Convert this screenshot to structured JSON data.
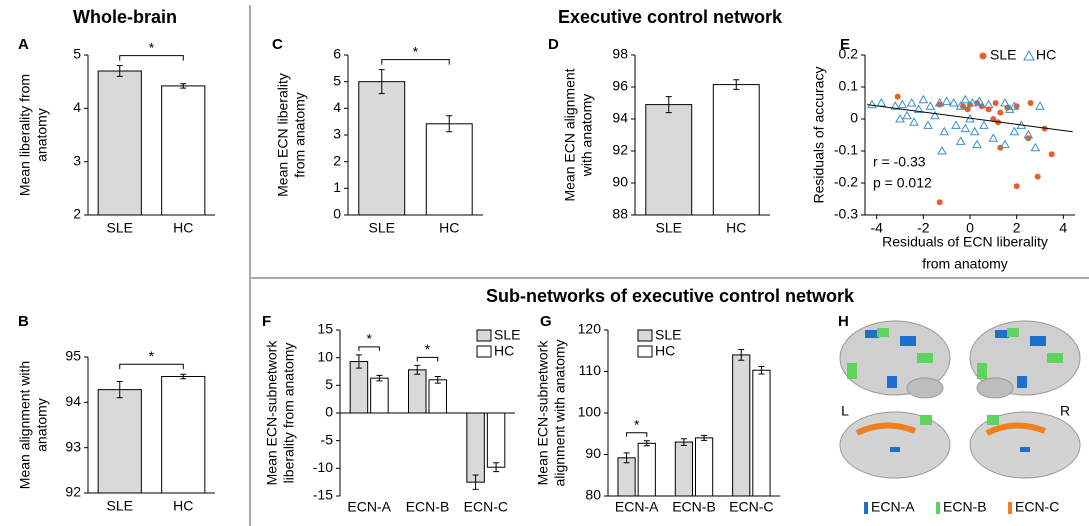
{
  "headers": [
    "Whole-brain",
    "Executive control network",
    "Sub-networks of executive control network"
  ],
  "chart_data": [
    {
      "panel": "A",
      "type": "bar",
      "y_label": [
        "Mean liberality from",
        "anatomy"
      ],
      "categories": [
        "SLE",
        "HC"
      ],
      "values": [
        4.7,
        4.42
      ],
      "errors": [
        0.1,
        0.04
      ],
      "colors": [
        "#d9d9d9",
        "#ffffff"
      ],
      "ylim": [
        2,
        5
      ],
      "yticks": [
        2,
        3,
        4,
        5
      ],
      "significance": "*"
    },
    {
      "panel": "B",
      "type": "bar",
      "y_label": [
        "Mean alignment with",
        "anatomy"
      ],
      "categories": [
        "SLE",
        "HC"
      ],
      "values": [
        94.28,
        94.57
      ],
      "errors": [
        0.18,
        0.05
      ],
      "colors": [
        "#d9d9d9",
        "#ffffff"
      ],
      "ylim": [
        92,
        95
      ],
      "yticks": [
        92,
        93,
        94,
        95
      ],
      "significance": "*"
    },
    {
      "panel": "C",
      "type": "bar",
      "y_label": [
        "Mean ECN liberality",
        "from anatomy"
      ],
      "categories": [
        "SLE",
        "HC"
      ],
      "values": [
        5.0,
        3.42
      ],
      "errors": [
        0.45,
        0.3
      ],
      "colors": [
        "#d9d9d9",
        "#ffffff"
      ],
      "ylim": [
        0,
        6
      ],
      "yticks": [
        0,
        1,
        2,
        3,
        4,
        5,
        6
      ],
      "significance": "*"
    },
    {
      "panel": "D",
      "type": "bar",
      "y_label": [
        "Mean ECN alignment",
        "with anatomy"
      ],
      "categories": [
        "SLE",
        "HC"
      ],
      "values": [
        94.9,
        96.15
      ],
      "errors": [
        0.5,
        0.3
      ],
      "colors": [
        "#d9d9d9",
        "#ffffff"
      ],
      "ylim": [
        88,
        98
      ],
      "yticks": [
        88,
        90,
        92,
        94,
        96,
        98
      ]
    },
    {
      "panel": "E",
      "type": "scatter",
      "y_label": [
        "Residuals of accuracy"
      ],
      "x_label": [
        "Residuals of ECN liberality",
        "from anatomy"
      ],
      "xlim": [
        -4.5,
        4.5
      ],
      "xticks": [
        -4,
        -2,
        0,
        2,
        4
      ],
      "ylim": [
        -0.3,
        0.2
      ],
      "yticks": [
        -0.3,
        -0.2,
        -0.1,
        0,
        0.1,
        0.2
      ],
      "legend": "upper right",
      "series": [
        {
          "name": "SLE",
          "color": "#e0622a",
          "marker": "circle",
          "x": [
            -3.1,
            -1.3,
            -0.3,
            0.0,
            0.3,
            -0.1,
            0.5,
            1.1,
            1.3,
            1.6,
            2.0,
            2.6,
            1.2,
            2.5,
            3.2,
            3.5,
            1.3,
            1.0,
            2.0,
            2.9,
            -1.3,
            0.8
          ],
          "values": [
            0.07,
            0.045,
            0.04,
            0.045,
            0.05,
            0.03,
            0.04,
            0.05,
            0.02,
            0.035,
            0.04,
            0.05,
            -0.01,
            -0.06,
            -0.03,
            -0.11,
            -0.09,
            0.0,
            -0.21,
            -0.18,
            -0.26,
            0.03
          ]
        },
        {
          "name": "HC",
          "color": "#3a8fd0",
          "marker": "triangle",
          "x": [
            -4.2,
            -3.8,
            -3.2,
            -2.9,
            -2.5,
            -2.2,
            -2.0,
            -1.7,
            -1.5,
            -1.3,
            -1.0,
            -0.7,
            -0.4,
            -0.2,
            0.1,
            0.4,
            0.8,
            1.5,
            1.9,
            3.0,
            -3.0,
            -2.4,
            -1.8,
            -1.1,
            -0.6,
            -0.2,
            0.2,
            0.6,
            1.0,
            1.5,
            1.9,
            2.2,
            2.5,
            2.8,
            -1.2,
            -0.4,
            0.3,
            -2.7,
            0.0,
            1.7
          ],
          "values": [
            0.045,
            0.05,
            0.04,
            0.045,
            0.05,
            0.03,
            0.06,
            0.04,
            0.01,
            0.05,
            0.055,
            0.05,
            0.04,
            0.06,
            0.05,
            0.055,
            0.045,
            0.05,
            0.04,
            0.04,
            0.0,
            -0.01,
            -0.02,
            -0.04,
            -0.02,
            -0.03,
            -0.04,
            -0.02,
            -0.06,
            -0.08,
            -0.04,
            -0.02,
            -0.05,
            -0.09,
            -0.1,
            -0.07,
            -0.08,
            0.01,
            0.0,
            0.03
          ]
        }
      ],
      "fit": {
        "x": [
          -4.4,
          4.4
        ],
        "y": [
          0.045,
          -0.04
        ]
      },
      "annotations": [
        "r = -0.33",
        "p = 0.012"
      ]
    },
    {
      "panel": "F",
      "type": "grouped_bar",
      "y_label": [
        "Mean ECN-subnetwork",
        "liberality from anatomy"
      ],
      "categories": [
        "ECN-A",
        "ECN-B",
        "ECN-C"
      ],
      "series": [
        {
          "name": "SLE",
          "color": "#d9d9d9",
          "values": [
            9.3,
            7.8,
            -12.5
          ],
          "errors": [
            1.2,
            0.8,
            1.3
          ]
        },
        {
          "name": "HC",
          "color": "#ffffff",
          "values": [
            6.3,
            6.0,
            -9.8
          ],
          "errors": [
            0.5,
            0.6,
            0.8
          ]
        }
      ],
      "ylim": [
        -15,
        15
      ],
      "yticks": [
        -15,
        -10,
        -5,
        0,
        5,
        10,
        15
      ],
      "legend": "upper right",
      "significance": [
        {
          "category": "ECN-A",
          "label": "*"
        },
        {
          "category": "ECN-B",
          "label": "*"
        }
      ]
    },
    {
      "panel": "G",
      "type": "grouped_bar",
      "y_label": [
        "Mean ECN-subnetwork",
        "alignment with anatomy"
      ],
      "categories": [
        "ECN-A",
        "ECN-B",
        "ECN-C"
      ],
      "series": [
        {
          "name": "SLE",
          "color": "#d9d9d9",
          "values": [
            89.2,
            93.0,
            114.0
          ],
          "errors": [
            1.2,
            0.8,
            1.3
          ]
        },
        {
          "name": "HC",
          "color": "#ffffff",
          "values": [
            92.7,
            94.0,
            110.3
          ],
          "errors": [
            0.6,
            0.6,
            0.9
          ]
        }
      ],
      "ylim": [
        80,
        120
      ],
      "yticks": [
        80,
        90,
        100,
        110,
        120
      ],
      "legend": "upper left",
      "significance": [
        {
          "category": "ECN-A",
          "label": "*"
        }
      ]
    }
  ],
  "brain_figure": {
    "panel": "H",
    "hemisphere_labels": [
      "L",
      "R"
    ],
    "legend": [
      {
        "name": "ECN-A",
        "color": "#1f6fd1"
      },
      {
        "name": "ECN-B",
        "color": "#5fd35f"
      },
      {
        "name": "ECN-C",
        "color": "#f07f1e"
      }
    ]
  }
}
